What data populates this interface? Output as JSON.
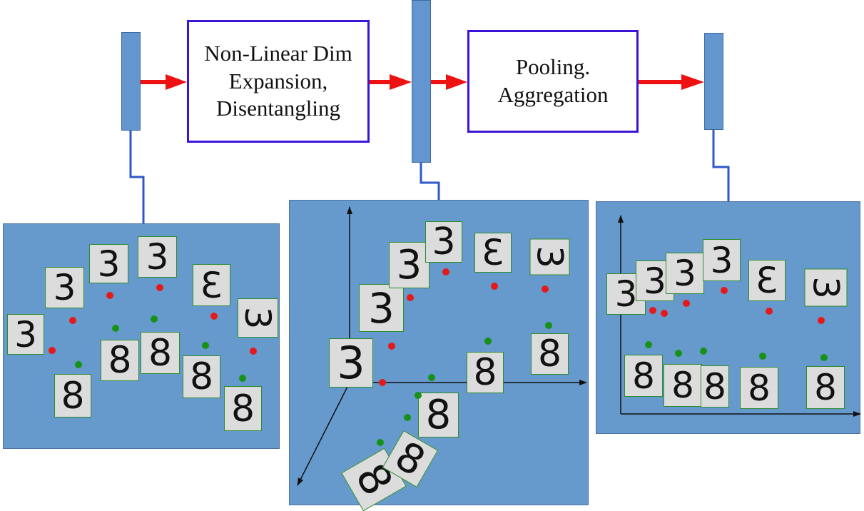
{
  "stages": [
    {
      "label": "Non-Linear Dim\nExpansion,\nDisentangling"
    },
    {
      "label": "Pooling.\nAggregation"
    }
  ],
  "colors": {
    "arrow": "#ee1111",
    "stage_border": "#3b14d8",
    "vector_fill": "#6395cf",
    "panel_fill": "#6699cc",
    "connector": "#2f57c9",
    "dot_red": "#e41a1a",
    "dot_green": "#179117"
  },
  "digits": {
    "three": "3",
    "eight": "8"
  },
  "icons": {
    "arrow": "arrow-right-icon"
  }
}
